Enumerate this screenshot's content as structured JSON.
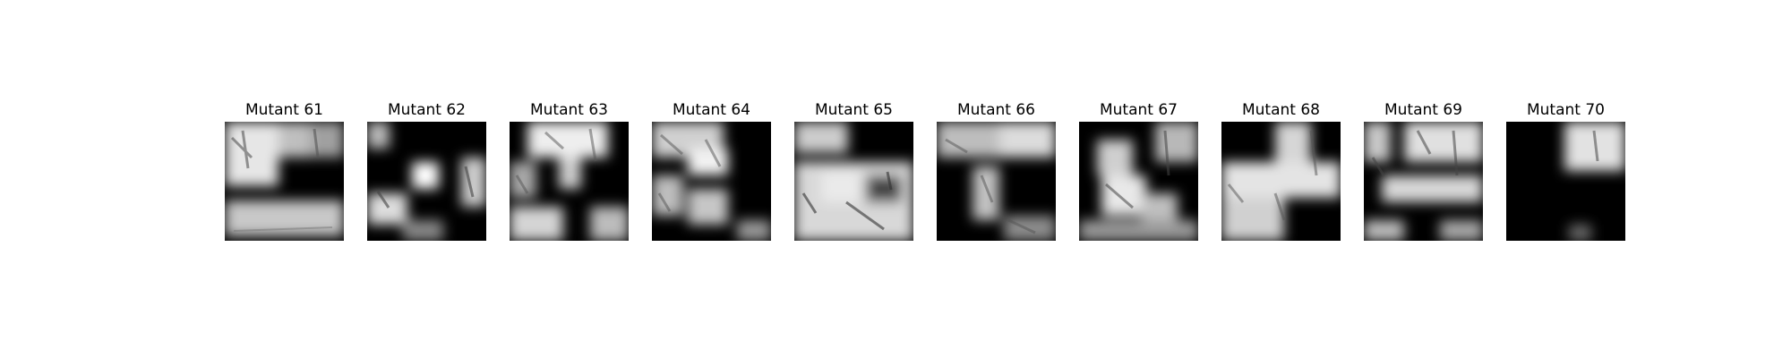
{
  "figure": {
    "panels": [
      {
        "title": "Mutant 61"
      },
      {
        "title": "Mutant 62"
      },
      {
        "title": "Mutant 63"
      },
      {
        "title": "Mutant 64"
      },
      {
        "title": "Mutant 65"
      },
      {
        "title": "Mutant 66"
      },
      {
        "title": "Mutant 67"
      },
      {
        "title": "Mutant 68"
      },
      {
        "title": "Mutant 69"
      },
      {
        "title": "Mutant 70"
      }
    ],
    "colormap": "grayscale"
  }
}
